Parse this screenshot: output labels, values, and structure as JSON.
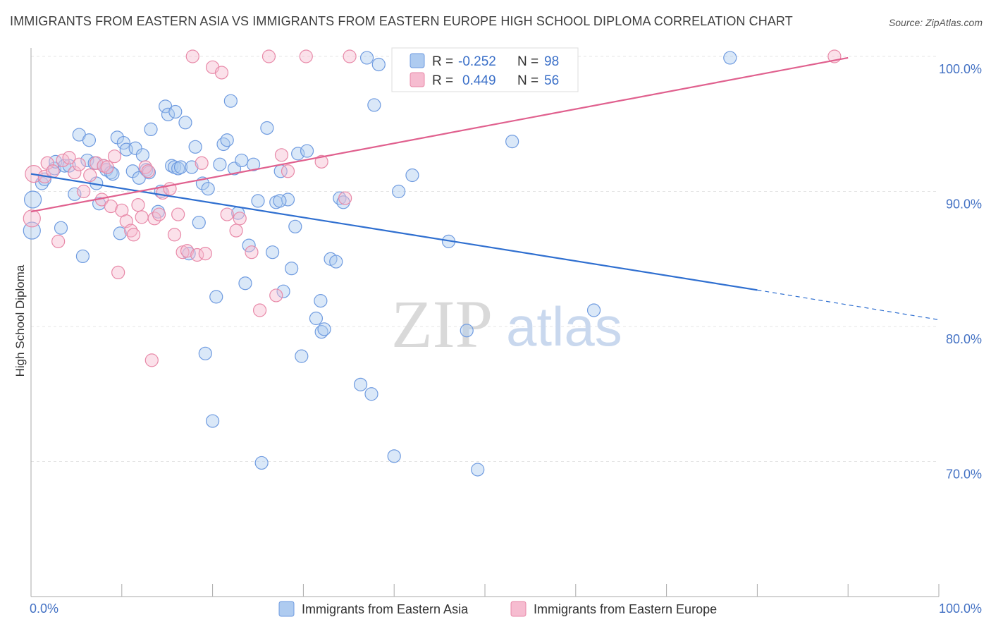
{
  "title": "IMMIGRANTS FROM EASTERN ASIA VS IMMIGRANTS FROM EASTERN EUROPE HIGH SCHOOL DIPLOMA CORRELATION CHART",
  "source": "Source: ZipAtlas.com",
  "watermark": {
    "zip": "ZIP",
    "atlas": "atlas"
  },
  "colors": {
    "blue": "#4472c4",
    "blue_fill": "#aecbf0",
    "pink": "#e0608e",
    "pink_fill": "#f6bcd0",
    "blue_line": "#2f6fd0",
    "pink_line": "#e0608e"
  },
  "legend": {
    "r_label": "R =",
    "n_label": "N =",
    "rows": [
      {
        "r": "-0.252",
        "n": "98"
      },
      {
        "r": "0.449",
        "n": "56"
      }
    ]
  },
  "chart_data": {
    "type": "scatter",
    "title": "IMMIGRANTS FROM EASTERN ASIA VS IMMIGRANTS FROM EASTERN EUROPE HIGH SCHOOL DIPLOMA CORRELATION CHART",
    "xlabel": "",
    "ylabel": "High School Diploma",
    "xlim": [
      0,
      100
    ],
    "ylim": [
      60,
      100
    ],
    "x_tick_labels": [
      "0.0%",
      "100.0%"
    ],
    "y_ticks": [
      70,
      80,
      90,
      100
    ],
    "y_tick_labels": [
      "70.0%",
      "80.0%",
      "90.0%",
      "100.0%"
    ],
    "grid": true,
    "legend_position": "bottom",
    "series": [
      {
        "name": "Immigrants from Eastern Asia",
        "color": "#4472c4",
        "R": -0.252,
        "N": 98,
        "trend": {
          "x": [
            0,
            80,
            100
          ],
          "y": [
            91.3,
            82.7,
            80.5
          ],
          "dashed_from_x": 80
        },
        "points": [
          [
            0.1,
            87.1
          ],
          [
            0.2,
            89.4
          ],
          [
            1.2,
            90.6
          ],
          [
            1.5,
            90.9
          ],
          [
            2.6,
            91.7
          ],
          [
            2.7,
            92.2
          ],
          [
            3.3,
            87.3
          ],
          [
            3.7,
            91.9
          ],
          [
            4.2,
            91.9
          ],
          [
            4.8,
            89.8
          ],
          [
            5.3,
            94.2
          ],
          [
            5.7,
            85.2
          ],
          [
            6.2,
            92.3
          ],
          [
            6.4,
            93.8
          ],
          [
            7.0,
            92.1
          ],
          [
            7.2,
            90.6
          ],
          [
            7.5,
            89.1
          ],
          [
            8.0,
            91.9
          ],
          [
            8.3,
            91.6
          ],
          [
            8.8,
            91.4
          ],
          [
            9.0,
            91.3
          ],
          [
            9.5,
            94.0
          ],
          [
            9.8,
            86.9
          ],
          [
            10.2,
            93.6
          ],
          [
            10.5,
            93.1
          ],
          [
            11.2,
            91.5
          ],
          [
            11.5,
            93.2
          ],
          [
            11.9,
            91.0
          ],
          [
            12.3,
            92.7
          ],
          [
            12.7,
            91.6
          ],
          [
            13.0,
            91.4
          ],
          [
            13.2,
            94.6
          ],
          [
            14.0,
            88.5
          ],
          [
            14.3,
            90.0
          ],
          [
            14.8,
            96.3
          ],
          [
            15.1,
            95.7
          ],
          [
            15.5,
            91.9
          ],
          [
            15.8,
            91.8
          ],
          [
            16.2,
            91.7
          ],
          [
            16.5,
            91.8
          ],
          [
            17.0,
            95.1
          ],
          [
            17.4,
            85.4
          ],
          [
            17.7,
            91.8
          ],
          [
            18.1,
            93.3
          ],
          [
            18.5,
            87.7
          ],
          [
            18.9,
            90.6
          ],
          [
            19.2,
            78.0
          ],
          [
            19.5,
            90.2
          ],
          [
            20.0,
            73.0
          ],
          [
            20.4,
            82.2
          ],
          [
            20.8,
            92.0
          ],
          [
            21.2,
            93.5
          ],
          [
            21.6,
            93.8
          ],
          [
            22.0,
            96.7
          ],
          [
            22.4,
            91.7
          ],
          [
            22.8,
            88.4
          ],
          [
            23.2,
            92.3
          ],
          [
            23.6,
            83.2
          ],
          [
            24.0,
            86.0
          ],
          [
            24.5,
            92.0
          ],
          [
            25.0,
            89.3
          ],
          [
            25.4,
            69.9
          ],
          [
            26.0,
            94.7
          ],
          [
            26.6,
            85.5
          ],
          [
            27.0,
            89.2
          ],
          [
            27.5,
            91.5
          ],
          [
            27.8,
            82.6
          ],
          [
            28.3,
            89.4
          ],
          [
            28.7,
            84.3
          ],
          [
            29.1,
            87.4
          ],
          [
            29.4,
            92.8
          ],
          [
            29.8,
            77.8
          ],
          [
            30.4,
            93.0
          ],
          [
            31.4,
            80.6
          ],
          [
            31.9,
            81.9
          ],
          [
            32.0,
            79.6
          ],
          [
            32.3,
            79.8
          ],
          [
            33.0,
            85.0
          ],
          [
            33.6,
            84.8
          ],
          [
            34.0,
            89.5
          ],
          [
            34.4,
            89.2
          ],
          [
            36.3,
            75.7
          ],
          [
            37.0,
            99.9
          ],
          [
            37.5,
            75.0
          ],
          [
            37.8,
            96.4
          ],
          [
            38.3,
            99.4
          ],
          [
            40.0,
            70.4
          ],
          [
            42.0,
            91.2
          ],
          [
            43.3,
            99.9
          ],
          [
            46.0,
            86.3
          ],
          [
            48.0,
            79.7
          ],
          [
            49.2,
            69.4
          ],
          [
            53.0,
            93.7
          ],
          [
            62.0,
            81.2
          ],
          [
            77.0,
            99.9
          ],
          [
            40.5,
            90.0
          ],
          [
            15.9,
            95.9
          ],
          [
            27.4,
            89.3
          ]
        ]
      },
      {
        "name": "Immigrants from Eastern Europe",
        "color": "#e0608e",
        "R": 0.449,
        "N": 56,
        "trend": {
          "x": [
            0,
            90
          ],
          "y": [
            88.5,
            99.9
          ]
        },
        "points": [
          [
            0.1,
            88.0
          ],
          [
            0.3,
            91.3
          ],
          [
            1.5,
            91.1
          ],
          [
            1.8,
            92.1
          ],
          [
            2.4,
            91.5
          ],
          [
            3.0,
            86.3
          ],
          [
            3.5,
            92.3
          ],
          [
            4.2,
            92.5
          ],
          [
            4.8,
            91.4
          ],
          [
            5.3,
            92.0
          ],
          [
            5.8,
            90.0
          ],
          [
            6.5,
            91.2
          ],
          [
            7.2,
            92.1
          ],
          [
            7.8,
            89.4
          ],
          [
            8.0,
            91.9
          ],
          [
            8.4,
            91.8
          ],
          [
            8.8,
            88.9
          ],
          [
            9.2,
            92.6
          ],
          [
            9.6,
            84.0
          ],
          [
            10.0,
            88.6
          ],
          [
            10.5,
            87.8
          ],
          [
            11.0,
            87.1
          ],
          [
            11.3,
            86.8
          ],
          [
            11.8,
            89.0
          ],
          [
            12.2,
            88.1
          ],
          [
            12.6,
            91.8
          ],
          [
            12.9,
            91.5
          ],
          [
            13.3,
            77.5
          ],
          [
            13.6,
            88.0
          ],
          [
            14.1,
            88.3
          ],
          [
            14.5,
            89.9
          ],
          [
            15.3,
            90.2
          ],
          [
            15.8,
            86.8
          ],
          [
            16.2,
            88.3
          ],
          [
            16.7,
            85.5
          ],
          [
            17.2,
            85.6
          ],
          [
            17.8,
            100.0
          ],
          [
            18.3,
            85.3
          ],
          [
            18.8,
            92.1
          ],
          [
            19.2,
            85.4
          ],
          [
            20.0,
            99.2
          ],
          [
            21.0,
            98.8
          ],
          [
            21.6,
            88.3
          ],
          [
            22.6,
            87.1
          ],
          [
            23.0,
            88.0
          ],
          [
            24.3,
            85.5
          ],
          [
            25.2,
            81.2
          ],
          [
            26.2,
            100.0
          ],
          [
            27.0,
            82.3
          ],
          [
            27.6,
            92.7
          ],
          [
            28.3,
            91.5
          ],
          [
            30.3,
            100.0
          ],
          [
            32.0,
            92.2
          ],
          [
            34.6,
            89.5
          ],
          [
            35.1,
            100.0
          ],
          [
            88.5,
            100.0
          ]
        ]
      }
    ]
  }
}
